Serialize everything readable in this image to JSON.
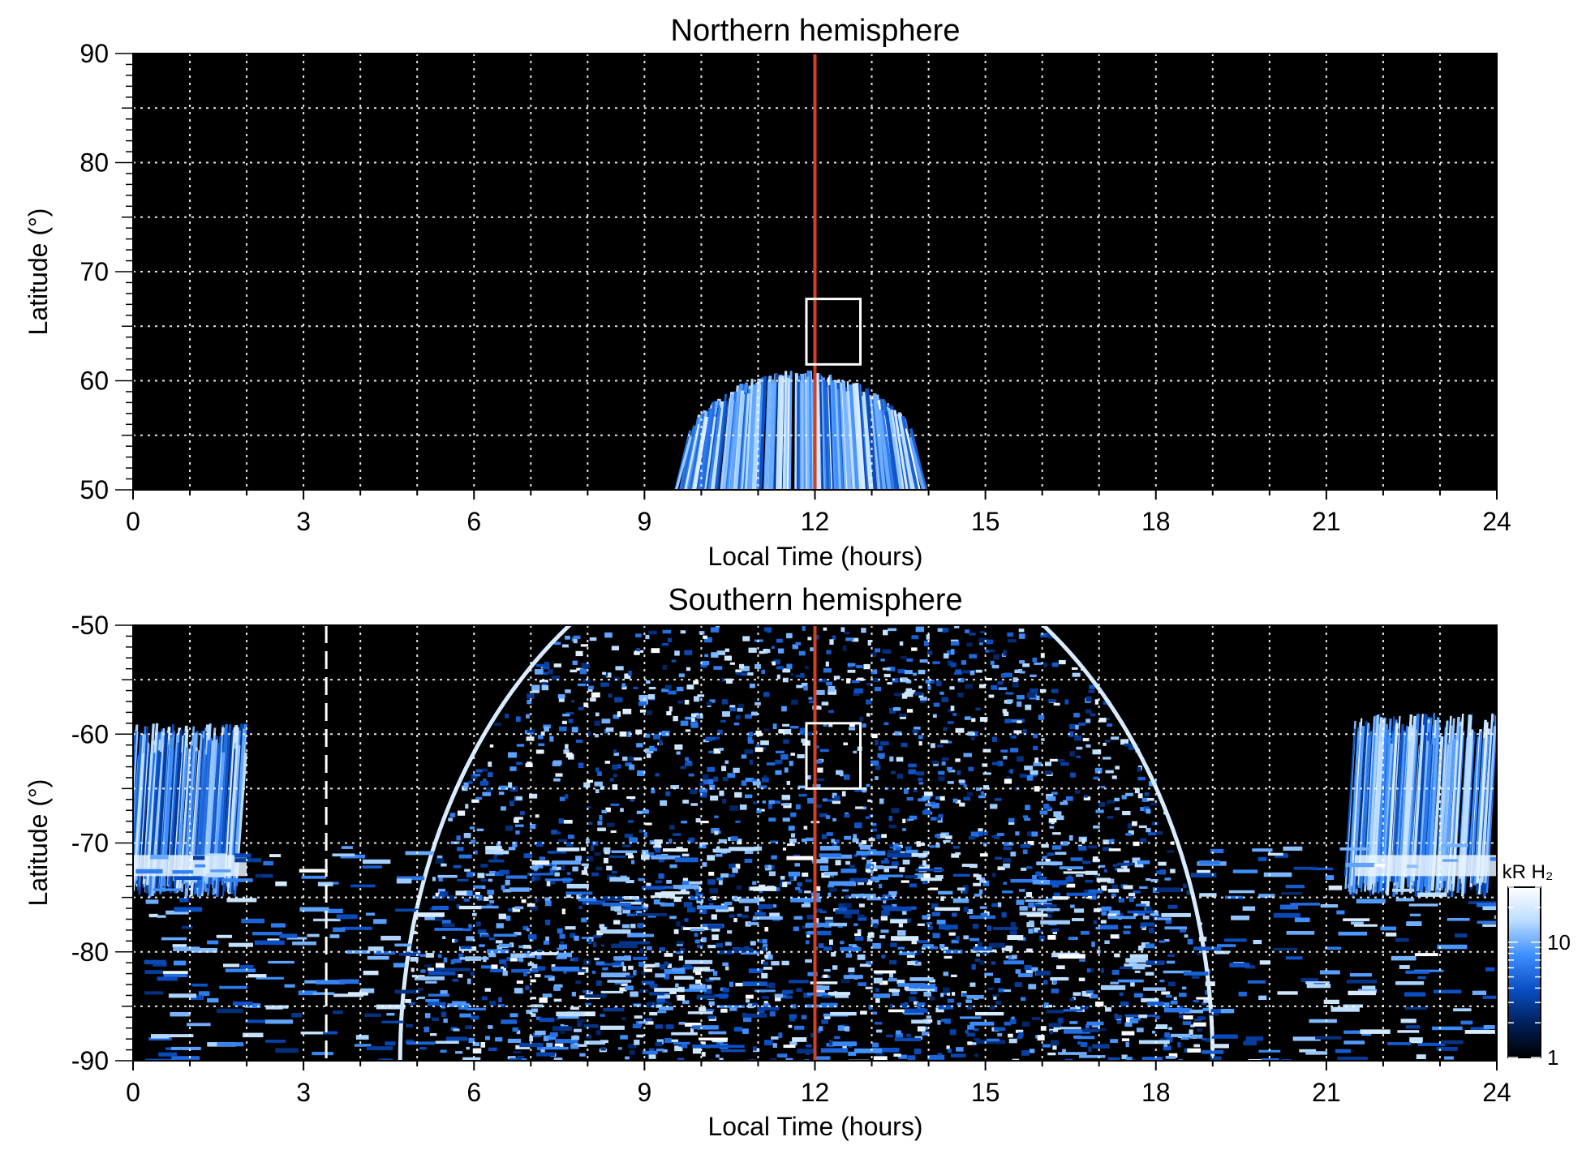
{
  "chart_data": [
    {
      "type": "heatmap",
      "title": "Northern hemisphere",
      "xlabel": "Local Time (hours)",
      "ylabel": "Latitude (°)",
      "xlim": [
        0,
        24
      ],
      "ylim": [
        50,
        90
      ],
      "x_ticks": [
        "0",
        "3",
        "6",
        "9",
        "12",
        "15",
        "18",
        "21",
        "24"
      ],
      "y_ticks": [
        "90",
        "80",
        "70",
        "60",
        "50"
      ],
      "grid": true,
      "background_color": "#000000",
      "marker_line": {
        "local_time": 12,
        "color": "#d7401c"
      },
      "box": {
        "lt_range": [
          11.85,
          12.8
        ],
        "lat_range": [
          61.5,
          67.5
        ]
      },
      "emission_regions": [
        {
          "lt_range": [
            9.8,
            13.7
          ],
          "lat_range": [
            50,
            61
          ],
          "shape": "fan",
          "intensity": "moderate"
        }
      ]
    },
    {
      "type": "heatmap",
      "title": "Southern hemisphere",
      "xlabel": "Local Time (hours)",
      "ylabel": "Latitude (°)",
      "xlim": [
        0,
        24
      ],
      "ylim": [
        -90,
        -50
      ],
      "x_ticks": [
        "0",
        "3",
        "6",
        "9",
        "12",
        "15",
        "18",
        "21",
        "24"
      ],
      "y_ticks": [
        "-50",
        "-60",
        "-70",
        "-80",
        "-90"
      ],
      "grid": true,
      "background_color": "#000000",
      "marker_line": {
        "local_time": 12,
        "color": "#d7401c"
      },
      "dashed_line": {
        "local_time": 3.4,
        "color": "#ffffff"
      },
      "box": {
        "lt_range": [
          11.85,
          12.8
        ],
        "lat_range": [
          -65,
          -59
        ]
      },
      "emission_regions": [
        {
          "lt_range": [
            4.7,
            19.0
          ],
          "lat_range": [
            -90,
            -50
          ],
          "shape": "bowl",
          "intensity": "high"
        },
        {
          "lt_range": [
            0,
            2.0
          ],
          "lat_range": [
            -75,
            -59
          ],
          "shape": "streaks",
          "intensity": "high"
        },
        {
          "lt_range": [
            21.5,
            24
          ],
          "lat_range": [
            -75,
            -58
          ],
          "shape": "streaks",
          "intensity": "high"
        },
        {
          "lt_range": [
            0,
            24
          ],
          "lat_range": [
            -90,
            -70
          ],
          "shape": "band",
          "intensity": "moderate"
        }
      ],
      "colorbar": {
        "label": "kR H₂",
        "scale": "log",
        "range": [
          1,
          30
        ],
        "ticks": [
          "10",
          "1"
        ],
        "colors": [
          "#000000",
          "#00205a",
          "#0a4fc4",
          "#3d8eff",
          "#b9dcff",
          "#ffffff"
        ]
      }
    }
  ]
}
